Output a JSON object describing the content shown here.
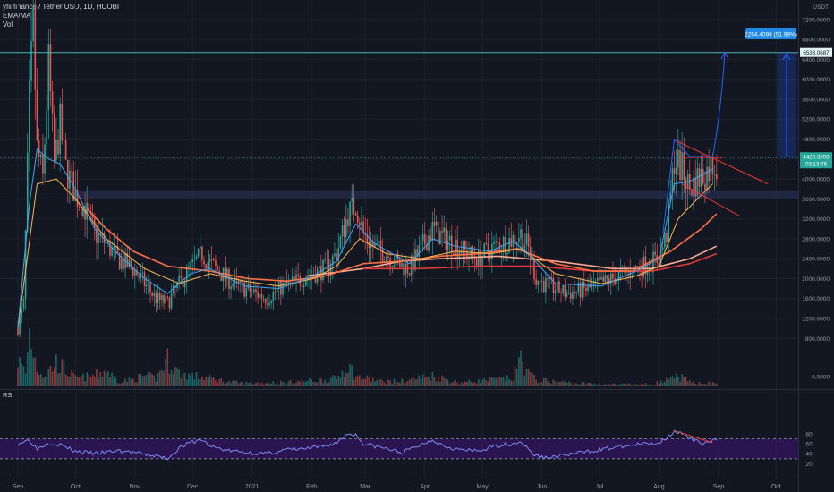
{
  "legend": {
    "symbol_line": "yfii finance / Tether USD, 1D, HUOBI",
    "indicator_1": "EMA/MA",
    "indicator_2": "Vol"
  },
  "chart_data": [
    {
      "type": "candlestick",
      "currency": "USDT",
      "y_axis_ticks": [
        7200,
        6800,
        6400,
        6000,
        5600,
        5200,
        4800,
        4400,
        4000,
        3600,
        3200,
        2800,
        2400,
        2000,
        1600,
        1200,
        800,
        0
      ],
      "y_axis_tick_labels": [
        "7200.0000",
        "6800.0000",
        "6400.0000",
        "6000.0000",
        "5600.0000",
        "5200.0000",
        "4800.0000",
        "4400.0000",
        "4000.0000",
        "3600.0000",
        "3200.0000",
        "2800.0000",
        "2400.0000",
        "2000.0000",
        "1600.0000",
        "1200.0000",
        "800.0000",
        "0.0000"
      ],
      "x_axis_labels": [
        "Sep",
        "Oct",
        "Nov",
        "Dec",
        "2021",
        "Feb",
        "Mar",
        "Apr",
        "May",
        "Jun",
        "Jul",
        "Aug",
        "Sep",
        "Oct"
      ],
      "price_labels": {
        "current_price": "4428.3693",
        "countdown": "03:13:76",
        "target_price": "6538.0687"
      },
      "projection_label": "2254.4098 (51.98%)",
      "price_path_keyframes": [
        [
          0,
          1000
        ],
        [
          3,
          1500
        ],
        [
          6,
          5600
        ],
        [
          8,
          7100
        ],
        [
          10,
          4600
        ],
        [
          13,
          4000
        ],
        [
          16,
          6300
        ],
        [
          19,
          4300
        ],
        [
          22,
          5100
        ],
        [
          25,
          4200
        ],
        [
          30,
          3700
        ],
        [
          35,
          3400
        ],
        [
          40,
          2900
        ],
        [
          46,
          2700
        ],
        [
          52,
          2400
        ],
        [
          60,
          2200
        ],
        [
          66,
          1900
        ],
        [
          72,
          1600
        ],
        [
          78,
          1500
        ],
        [
          84,
          1900
        ],
        [
          90,
          2200
        ],
        [
          96,
          2500
        ],
        [
          100,
          2300
        ],
        [
          106,
          2100
        ],
        [
          112,
          1900
        ],
        [
          118,
          1800
        ],
        [
          124,
          1700
        ],
        [
          130,
          1600
        ],
        [
          136,
          1800
        ],
        [
          142,
          1900
        ],
        [
          148,
          2000
        ],
        [
          154,
          2100
        ],
        [
          160,
          2200
        ],
        [
          166,
          2500
        ],
        [
          172,
          3300
        ],
        [
          176,
          3500
        ],
        [
          180,
          2900
        ],
        [
          186,
          2600
        ],
        [
          192,
          2500
        ],
        [
          198,
          2300
        ],
        [
          204,
          2200
        ],
        [
          210,
          2600
        ],
        [
          216,
          3000
        ],
        [
          222,
          2800
        ],
        [
          228,
          2700
        ],
        [
          234,
          2500
        ],
        [
          240,
          2400
        ],
        [
          246,
          2600
        ],
        [
          252,
          2700
        ],
        [
          258,
          2800
        ],
        [
          262,
          2900
        ],
        [
          266,
          2600
        ],
        [
          270,
          2000
        ],
        [
          274,
          1900
        ],
        [
          280,
          1800
        ],
        [
          286,
          1700
        ],
        [
          292,
          1750
        ],
        [
          298,
          1800
        ],
        [
          304,
          1900
        ],
        [
          310,
          2000
        ],
        [
          316,
          2100
        ],
        [
          322,
          2200
        ],
        [
          328,
          2300
        ],
        [
          334,
          2400
        ],
        [
          338,
          2900
        ],
        [
          342,
          4400
        ],
        [
          346,
          4200
        ],
        [
          350,
          3800
        ],
        [
          354,
          4000
        ],
        [
          358,
          4100
        ],
        [
          362,
          4300
        ]
      ],
      "volume_keyframes": [
        [
          0,
          500
        ],
        [
          4,
          250
        ],
        [
          6,
          1000
        ],
        [
          10,
          350
        ],
        [
          14,
          200
        ],
        [
          20,
          450
        ],
        [
          30,
          150
        ],
        [
          40,
          200
        ],
        [
          46,
          300
        ],
        [
          52,
          100
        ],
        [
          60,
          120
        ],
        [
          66,
          200
        ],
        [
          72,
          150
        ],
        [
          78,
          500
        ],
        [
          84,
          250
        ],
        [
          90,
          200
        ],
        [
          100,
          150
        ],
        [
          110,
          80
        ],
        [
          120,
          60
        ],
        [
          130,
          70
        ],
        [
          140,
          80
        ],
        [
          150,
          100
        ],
        [
          160,
          120
        ],
        [
          166,
          150
        ],
        [
          172,
          400
        ],
        [
          176,
          180
        ],
        [
          190,
          90
        ],
        [
          200,
          100
        ],
        [
          216,
          200
        ],
        [
          230,
          70
        ],
        [
          246,
          120
        ],
        [
          258,
          150
        ],
        [
          262,
          550
        ],
        [
          266,
          250
        ],
        [
          270,
          120
        ],
        [
          290,
          60
        ],
        [
          310,
          40
        ],
        [
          330,
          40
        ],
        [
          340,
          120
        ],
        [
          344,
          200
        ],
        [
          350,
          80
        ],
        [
          362,
          60
        ]
      ],
      "ema_fast_keyframes": [
        [
          0,
          1000
        ],
        [
          6,
          3500
        ],
        [
          10,
          4600
        ],
        [
          16,
          4400
        ],
        [
          22,
          4300
        ],
        [
          30,
          3800
        ],
        [
          40,
          3000
        ],
        [
          52,
          2500
        ],
        [
          66,
          2000
        ],
        [
          78,
          1700
        ],
        [
          90,
          2100
        ],
        [
          100,
          2200
        ],
        [
          118,
          1850
        ],
        [
          136,
          1800
        ],
        [
          154,
          2050
        ],
        [
          166,
          2350
        ],
        [
          176,
          3100
        ],
        [
          186,
          2700
        ],
        [
          204,
          2300
        ],
        [
          216,
          2800
        ],
        [
          228,
          2650
        ],
        [
          246,
          2550
        ],
        [
          258,
          2750
        ],
        [
          266,
          2500
        ],
        [
          280,
          1900
        ],
        [
          304,
          1850
        ],
        [
          322,
          2150
        ],
        [
          334,
          2400
        ],
        [
          342,
          3900
        ],
        [
          350,
          3950
        ],
        [
          362,
          4200
        ]
      ],
      "ema_mid_keyframes": [
        [
          0,
          1000
        ],
        [
          10,
          3900
        ],
        [
          20,
          4000
        ],
        [
          30,
          3600
        ],
        [
          46,
          2800
        ],
        [
          66,
          2200
        ],
        [
          84,
          1900
        ],
        [
          100,
          2100
        ],
        [
          118,
          1950
        ],
        [
          136,
          1850
        ],
        [
          154,
          2000
        ],
        [
          166,
          2250
        ],
        [
          178,
          2800
        ],
        [
          192,
          2500
        ],
        [
          210,
          2400
        ],
        [
          228,
          2550
        ],
        [
          246,
          2500
        ],
        [
          262,
          2600
        ],
        [
          280,
          2100
        ],
        [
          304,
          1900
        ],
        [
          322,
          2050
        ],
        [
          334,
          2250
        ],
        [
          344,
          3200
        ],
        [
          354,
          3600
        ],
        [
          362,
          3900
        ]
      ],
      "ma_slow_keyframes": [
        [
          36,
          3400
        ],
        [
          46,
          3000
        ],
        [
          60,
          2550
        ],
        [
          78,
          2250
        ],
        [
          100,
          2150
        ],
        [
          120,
          2000
        ],
        [
          140,
          1950
        ],
        [
          160,
          2050
        ],
        [
          180,
          2300
        ],
        [
          200,
          2350
        ],
        [
          220,
          2450
        ],
        [
          240,
          2500
        ],
        [
          260,
          2600
        ],
        [
          280,
          2300
        ],
        [
          300,
          2150
        ],
        [
          320,
          2150
        ],
        [
          340,
          2550
        ],
        [
          356,
          3000
        ],
        [
          364,
          3300
        ]
      ],
      "ma_long_1_keyframes": [
        [
          150,
          2050
        ],
        [
          180,
          2200
        ],
        [
          200,
          2350
        ],
        [
          220,
          2400
        ],
        [
          250,
          2450
        ],
        [
          280,
          2350
        ],
        [
          310,
          2200
        ],
        [
          330,
          2200
        ],
        [
          350,
          2400
        ],
        [
          364,
          2650
        ]
      ],
      "ma_long_2_keyframes": [
        [
          180,
          2200
        ],
        [
          210,
          2200
        ],
        [
          240,
          2250
        ],
        [
          270,
          2250
        ],
        [
          300,
          2150
        ],
        [
          330,
          2150
        ],
        [
          350,
          2300
        ],
        [
          364,
          2500
        ]
      ],
      "rsi": {
        "label": "RSI",
        "axis_ticks": [
          80,
          60,
          40,
          20
        ],
        "axis_tick_labels": [
          "80",
          "60",
          "40",
          "20"
        ],
        "upper_band": 70,
        "lower_band": 30,
        "keyframes": [
          [
            0,
            60
          ],
          [
            6,
            68
          ],
          [
            10,
            50
          ],
          [
            16,
            62
          ],
          [
            22,
            58
          ],
          [
            30,
            45
          ],
          [
            40,
            40
          ],
          [
            52,
            46
          ],
          [
            60,
            43
          ],
          [
            66,
            38
          ],
          [
            72,
            36
          ],
          [
            78,
            30
          ],
          [
            84,
            52
          ],
          [
            90,
            62
          ],
          [
            96,
            68
          ],
          [
            100,
            55
          ],
          [
            110,
            46
          ],
          [
            120,
            42
          ],
          [
            130,
            40
          ],
          [
            140,
            48
          ],
          [
            150,
            50
          ],
          [
            160,
            55
          ],
          [
            166,
            62
          ],
          [
            172,
            80
          ],
          [
            176,
            78
          ],
          [
            180,
            60
          ],
          [
            190,
            52
          ],
          [
            200,
            42
          ],
          [
            210,
            58
          ],
          [
            216,
            68
          ],
          [
            222,
            56
          ],
          [
            230,
            48
          ],
          [
            240,
            45
          ],
          [
            246,
            52
          ],
          [
            252,
            58
          ],
          [
            258,
            60
          ],
          [
            262,
            65
          ],
          [
            266,
            48
          ],
          [
            270,
            35
          ],
          [
            276,
            32
          ],
          [
            286,
            38
          ],
          [
            298,
            45
          ],
          [
            310,
            52
          ],
          [
            322,
            58
          ],
          [
            334,
            62
          ],
          [
            338,
            72
          ],
          [
            342,
            86
          ],
          [
            346,
            80
          ],
          [
            350,
            70
          ],
          [
            354,
            64
          ],
          [
            358,
            62
          ],
          [
            362,
            66
          ]
        ]
      },
      "colors": {
        "up": "#26a69a",
        "down": "#ef5350",
        "ema_fast": "#42a5f5",
        "ema_mid": "#ffb74d",
        "ma_slow": "#ff7043",
        "ma_long_1": "#ffab91",
        "ma_long_2": "#e53935",
        "rsi_line": "#7e57c2",
        "projection": "#2962ff",
        "resistance": "#5c6bc0",
        "trend_line": "#e53935"
      }
    }
  ]
}
